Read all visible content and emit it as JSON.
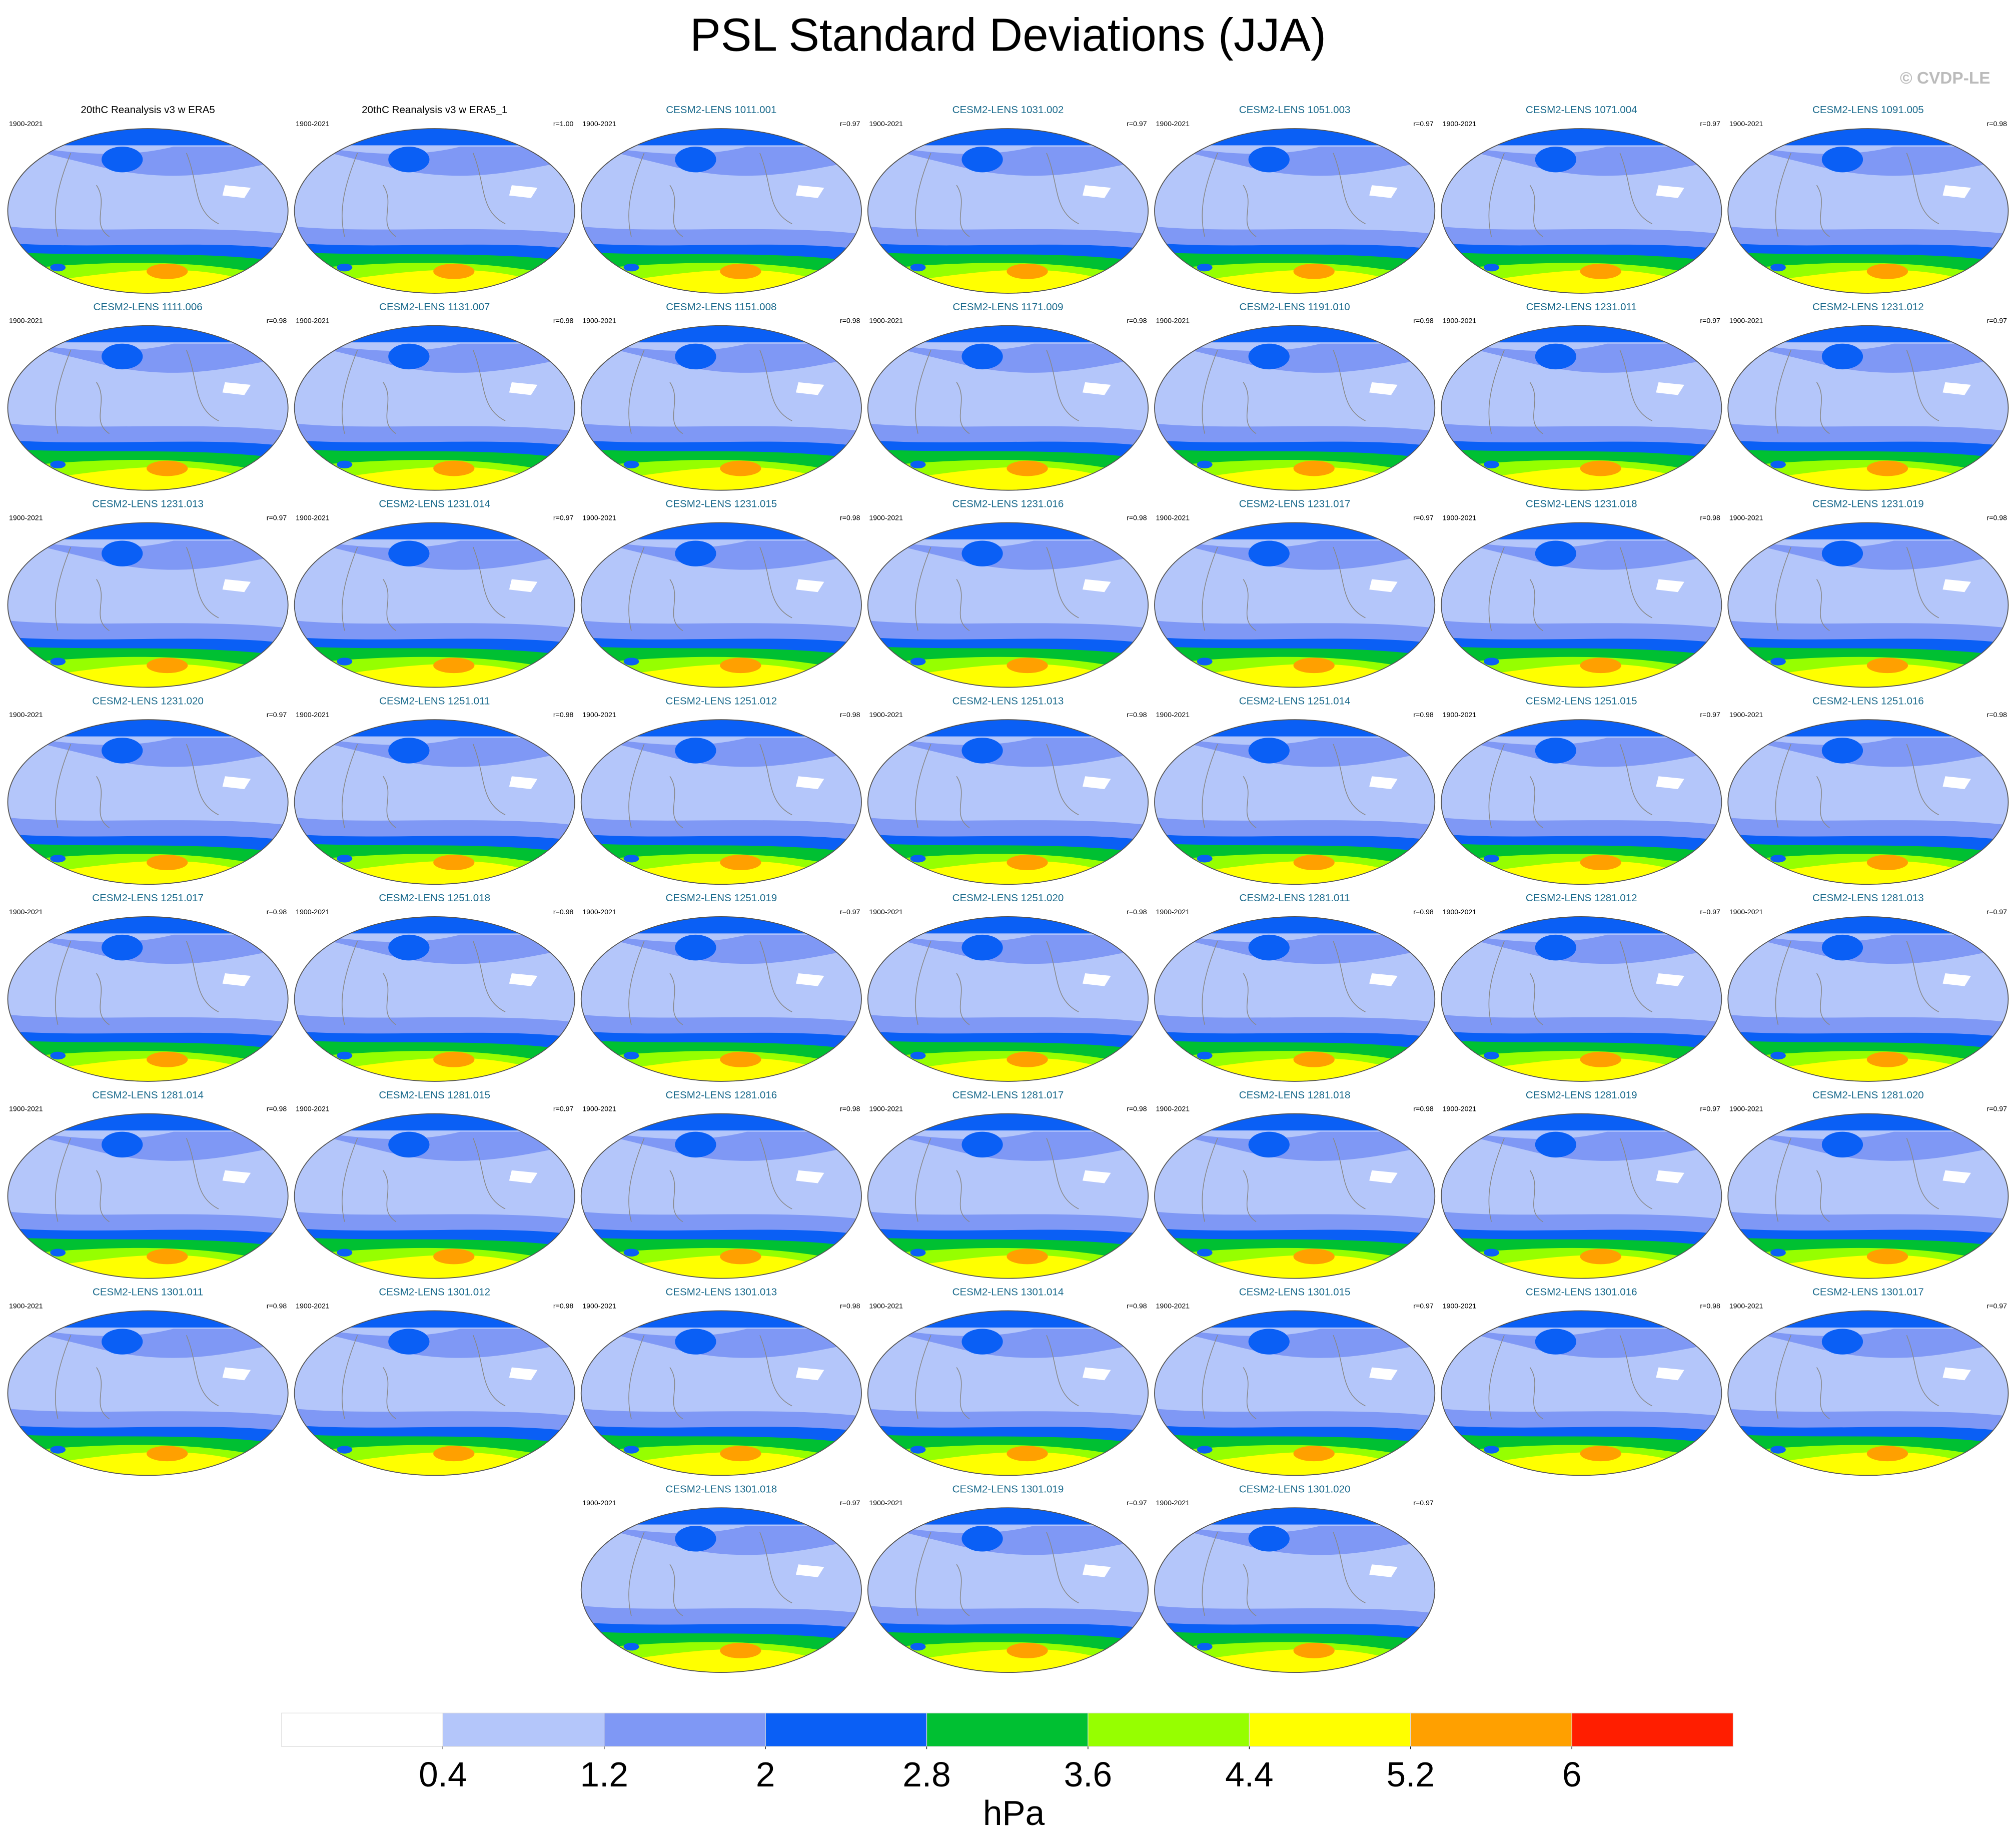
{
  "title": "PSL Standard Deviations (JJA)",
  "credit": "© CVDP-LE",
  "observations": [
    {
      "title": "20thC Reanalysis v3 w ERA5",
      "period": "1900-2021"
    },
    {
      "title": "20thC Reanalysis v3 w ERA5_1",
      "period": "1900-2021",
      "r": "r=1.00"
    }
  ],
  "members": [
    {
      "title": "CESM2-LENS 1011.001",
      "period": "1900-2021",
      "r": "r=0.97"
    },
    {
      "title": "CESM2-LENS 1031.002",
      "period": "1900-2021",
      "r": "r=0.97"
    },
    {
      "title": "CESM2-LENS 1051.003",
      "period": "1900-2021",
      "r": "r=0.97"
    },
    {
      "title": "CESM2-LENS 1071.004",
      "period": "1900-2021",
      "r": "r=0.97"
    },
    {
      "title": "CESM2-LENS 1091.005",
      "period": "1900-2021",
      "r": "r=0.98"
    },
    {
      "title": "CESM2-LENS 1111.006",
      "period": "1900-2021",
      "r": "r=0.98"
    },
    {
      "title": "CESM2-LENS 1131.007",
      "period": "1900-2021",
      "r": "r=0.98"
    },
    {
      "title": "CESM2-LENS 1151.008",
      "period": "1900-2021",
      "r": "r=0.98"
    },
    {
      "title": "CESM2-LENS 1171.009",
      "period": "1900-2021",
      "r": "r=0.98"
    },
    {
      "title": "CESM2-LENS 1191.010",
      "period": "1900-2021",
      "r": "r=0.98"
    },
    {
      "title": "CESM2-LENS 1231.011",
      "period": "1900-2021",
      "r": "r=0.97"
    },
    {
      "title": "CESM2-LENS 1231.012",
      "period": "1900-2021",
      "r": "r=0.97"
    },
    {
      "title": "CESM2-LENS 1231.013",
      "period": "1900-2021",
      "r": "r=0.97"
    },
    {
      "title": "CESM2-LENS 1231.014",
      "period": "1900-2021",
      "r": "r=0.97"
    },
    {
      "title": "CESM2-LENS 1231.015",
      "period": "1900-2021",
      "r": "r=0.98"
    },
    {
      "title": "CESM2-LENS 1231.016",
      "period": "1900-2021",
      "r": "r=0.98"
    },
    {
      "title": "CESM2-LENS 1231.017",
      "period": "1900-2021",
      "r": "r=0.97"
    },
    {
      "title": "CESM2-LENS 1231.018",
      "period": "1900-2021",
      "r": "r=0.98"
    },
    {
      "title": "CESM2-LENS 1231.019",
      "period": "1900-2021",
      "r": "r=0.98"
    },
    {
      "title": "CESM2-LENS 1231.020",
      "period": "1900-2021",
      "r": "r=0.97"
    },
    {
      "title": "CESM2-LENS 1251.011",
      "period": "1900-2021",
      "r": "r=0.98"
    },
    {
      "title": "CESM2-LENS 1251.012",
      "period": "1900-2021",
      "r": "r=0.98"
    },
    {
      "title": "CESM2-LENS 1251.013",
      "period": "1900-2021",
      "r": "r=0.98"
    },
    {
      "title": "CESM2-LENS 1251.014",
      "period": "1900-2021",
      "r": "r=0.98"
    },
    {
      "title": "CESM2-LENS 1251.015",
      "period": "1900-2021",
      "r": "r=0.97"
    },
    {
      "title": "CESM2-LENS 1251.016",
      "period": "1900-2021",
      "r": "r=0.98"
    },
    {
      "title": "CESM2-LENS 1251.017",
      "period": "1900-2021",
      "r": "r=0.98"
    },
    {
      "title": "CESM2-LENS 1251.018",
      "period": "1900-2021",
      "r": "r=0.98"
    },
    {
      "title": "CESM2-LENS 1251.019",
      "period": "1900-2021",
      "r": "r=0.97"
    },
    {
      "title": "CESM2-LENS 1251.020",
      "period": "1900-2021",
      "r": "r=0.98"
    },
    {
      "title": "CESM2-LENS 1281.011",
      "period": "1900-2021",
      "r": "r=0.98"
    },
    {
      "title": "CESM2-LENS 1281.012",
      "period": "1900-2021",
      "r": "r=0.97"
    },
    {
      "title": "CESM2-LENS 1281.013",
      "period": "1900-2021",
      "r": "r=0.97"
    },
    {
      "title": "CESM2-LENS 1281.014",
      "period": "1900-2021",
      "r": "r=0.98"
    },
    {
      "title": "CESM2-LENS 1281.015",
      "period": "1900-2021",
      "r": "r=0.97"
    },
    {
      "title": "CESM2-LENS 1281.016",
      "period": "1900-2021",
      "r": "r=0.98"
    },
    {
      "title": "CESM2-LENS 1281.017",
      "period": "1900-2021",
      "r": "r=0.98"
    },
    {
      "title": "CESM2-LENS 1281.018",
      "period": "1900-2021",
      "r": "r=0.98"
    },
    {
      "title": "CESM2-LENS 1281.019",
      "period": "1900-2021",
      "r": "r=0.97"
    },
    {
      "title": "CESM2-LENS 1281.020",
      "period": "1900-2021",
      "r": "r=0.97"
    },
    {
      "title": "CESM2-LENS 1301.011",
      "period": "1900-2021",
      "r": "r=0.98"
    },
    {
      "title": "CESM2-LENS 1301.012",
      "period": "1900-2021",
      "r": "r=0.98"
    },
    {
      "title": "CESM2-LENS 1301.013",
      "period": "1900-2021",
      "r": "r=0.98"
    },
    {
      "title": "CESM2-LENS 1301.014",
      "period": "1900-2021",
      "r": "r=0.98"
    },
    {
      "title": "CESM2-LENS 1301.015",
      "period": "1900-2021",
      "r": "r=0.97"
    },
    {
      "title": "CESM2-LENS 1301.016",
      "period": "1900-2021",
      "r": "r=0.98"
    },
    {
      "title": "CESM2-LENS 1301.017",
      "period": "1900-2021",
      "r": "r=0.97"
    },
    {
      "title": "CESM2-LENS 1301.018",
      "period": "1900-2021",
      "r": "r=0.97"
    },
    {
      "title": "CESM2-LENS 1301.019",
      "period": "1900-2021",
      "r": "r=0.97"
    },
    {
      "title": "CESM2-LENS 1301.020",
      "period": "1900-2021",
      "r": "r=0.97"
    }
  ],
  "colorbar": {
    "label": "hPa",
    "ticks": [
      0.4,
      1.2,
      2,
      2.8,
      3.6,
      4.4,
      5.2,
      6
    ],
    "colors": [
      "#ffffff",
      "#b4c6fa",
      "#7f98f5",
      "#0a5ff5",
      "#00c032",
      "#96ff00",
      "#ffff00",
      "#ffa000",
      "#ff1e00"
    ]
  }
}
